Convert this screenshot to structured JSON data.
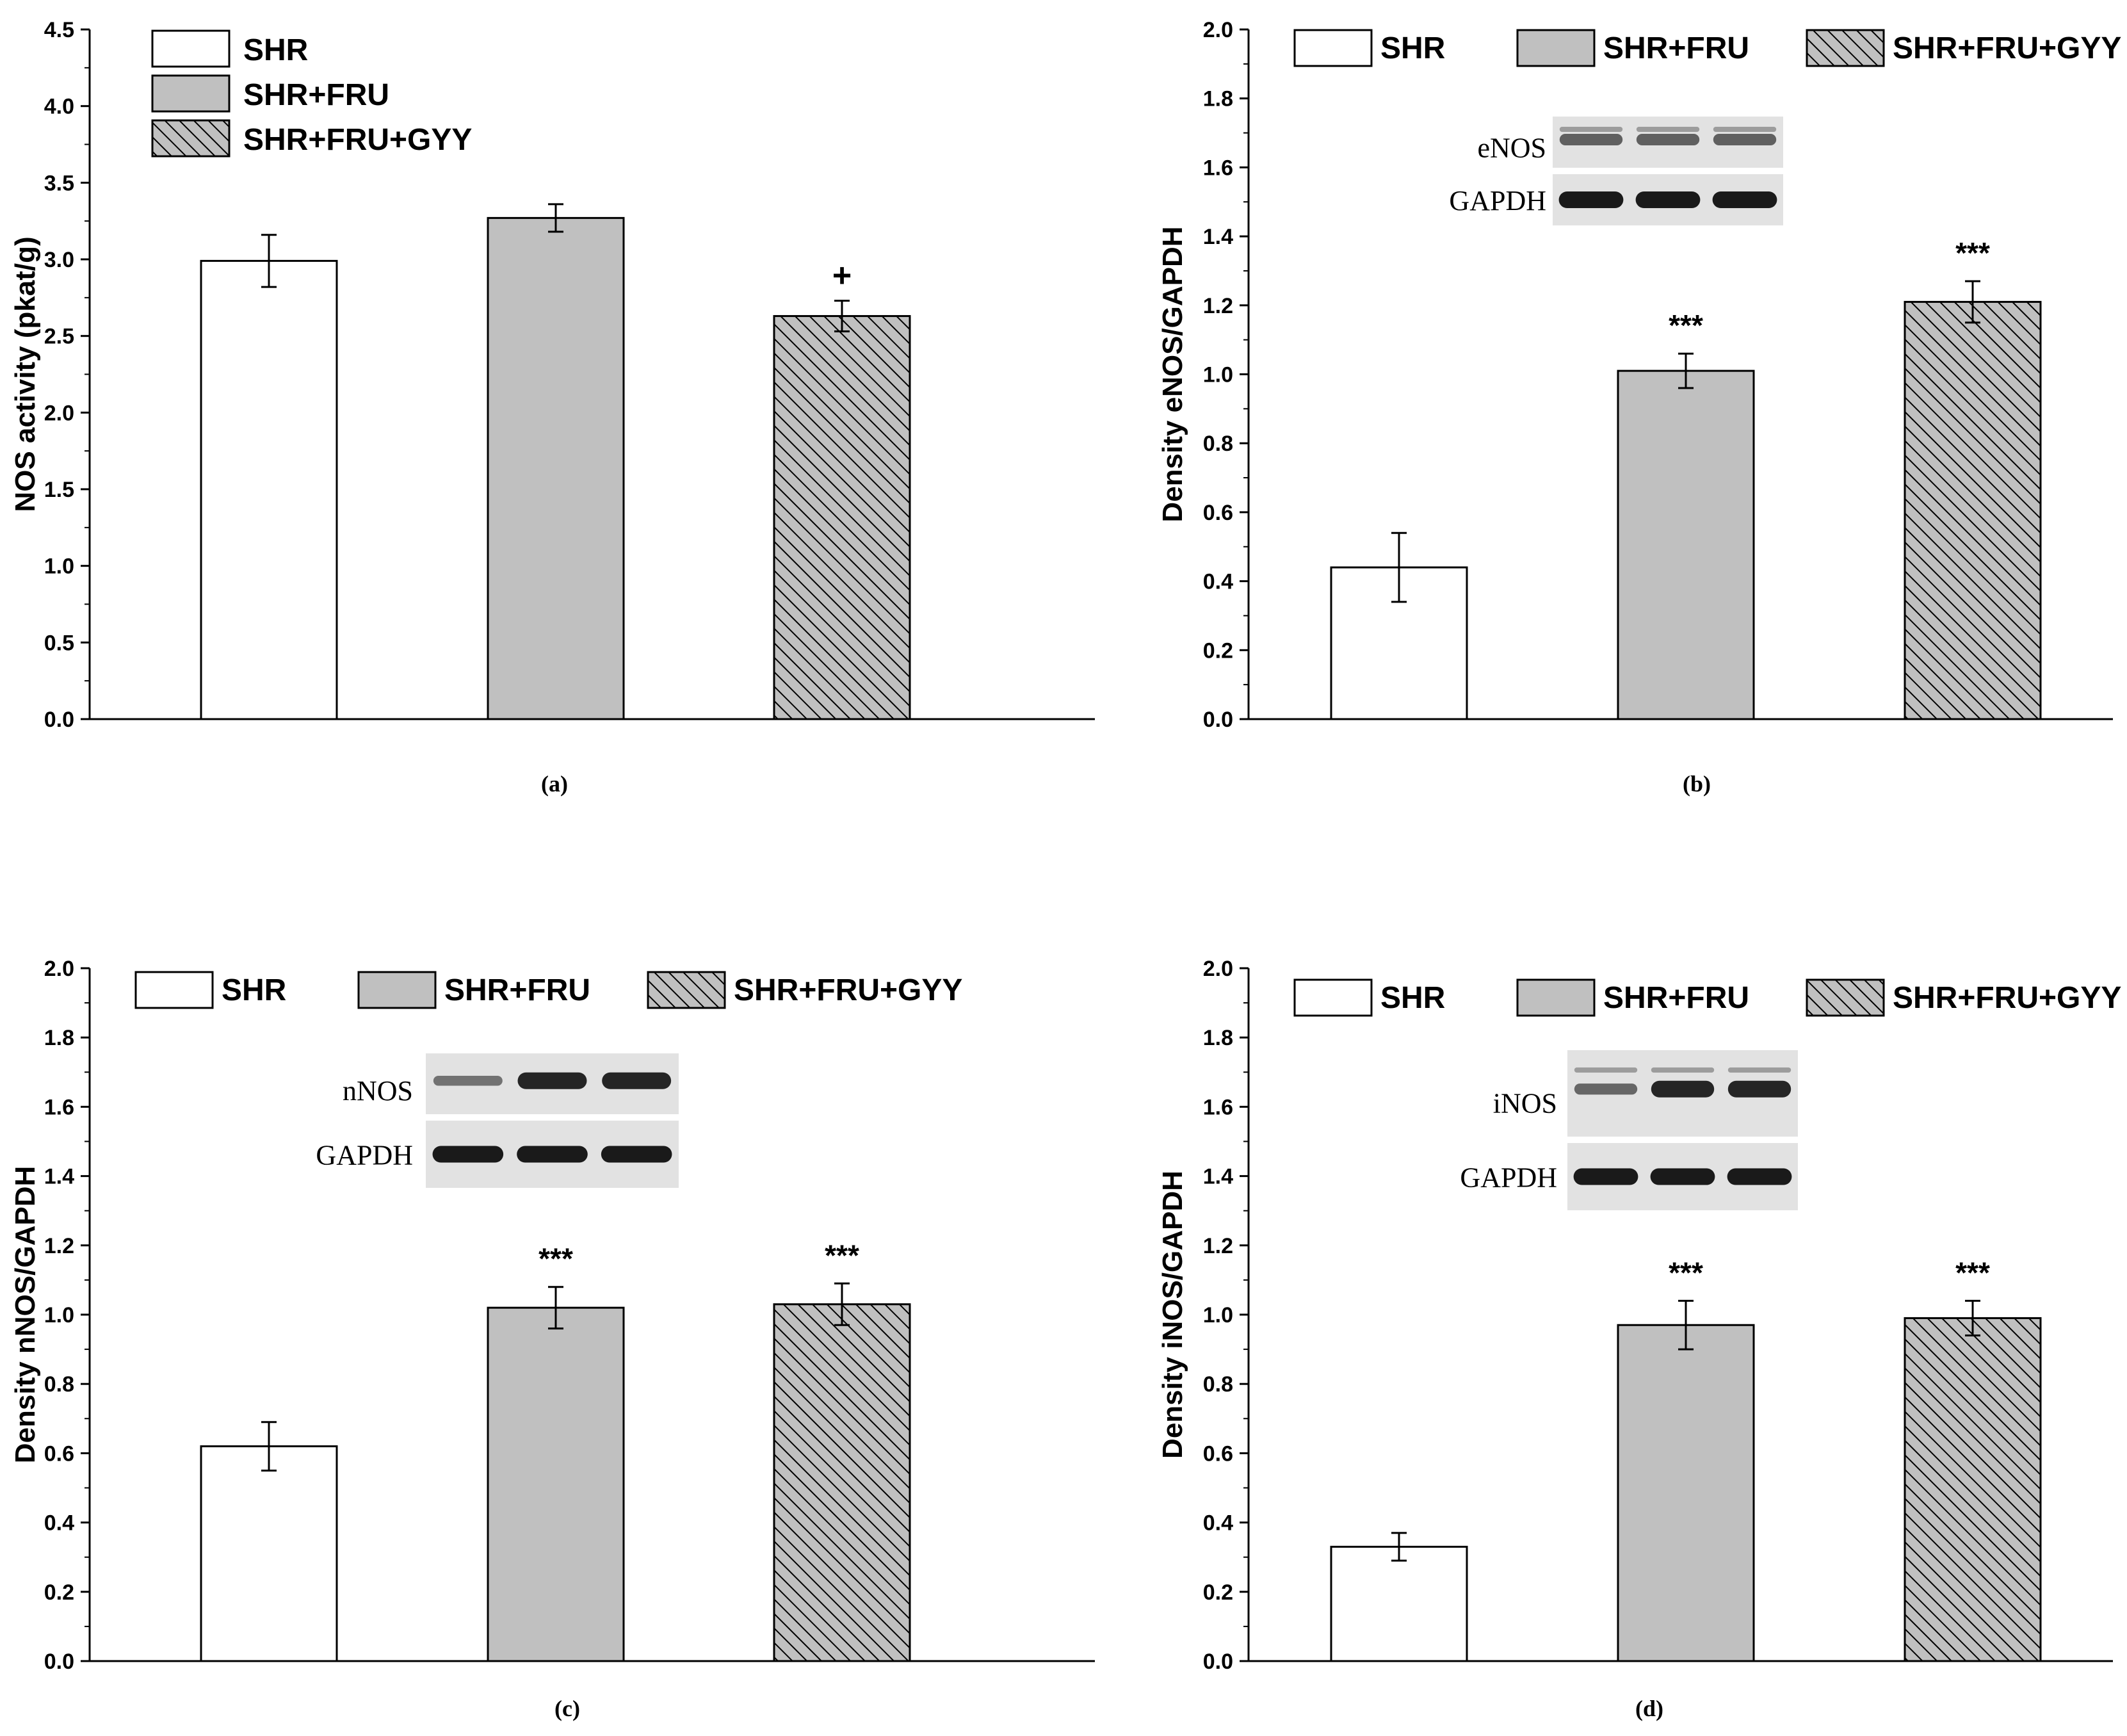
{
  "colors": {
    "shr_fill": "#ffffff",
    "fru_fill": "#c0c0c0",
    "gyy_fill": "#c0c0c0",
    "stroke": "#000000",
    "band_dark": "#1a1a1a",
    "blot_bg": "#e2e2e2"
  },
  "legend_labels": [
    "SHR",
    "SHR+FRU",
    "SHR+FRU+GYY"
  ],
  "chart_data": [
    {
      "panel": "(a)",
      "type": "bar",
      "categories": [
        "SHR",
        "SHR+FRU",
        "SHR+FRU+GYY"
      ],
      "values": [
        2.99,
        3.27,
        2.63
      ],
      "errors": [
        0.17,
        0.09,
        0.1
      ],
      "annotations": [
        "",
        "",
        "+"
      ],
      "ylabel": "NOS activity (pkat/g)",
      "ylim": [
        0,
        4.5
      ],
      "yticks": [
        "0.0",
        "0.5",
        "1.0",
        "1.5",
        "2.0",
        "2.5",
        "3.0",
        "3.5",
        "4.0",
        "4.5"
      ],
      "legend": "top-left, stacked",
      "inset": null
    },
    {
      "panel": "(b)",
      "type": "bar",
      "categories": [
        "SHR",
        "SHR+FRU",
        "SHR+FRU+GYY"
      ],
      "values": [
        0.44,
        1.01,
        1.21
      ],
      "errors": [
        0.1,
        0.05,
        0.06
      ],
      "annotations": [
        "",
        "***",
        "***"
      ],
      "ylabel": "Density eNOS/GAPDH",
      "ylim": [
        0,
        2.0
      ],
      "yticks": [
        "0.0",
        "0.2",
        "0.4",
        "0.6",
        "0.8",
        "1.0",
        "1.2",
        "1.4",
        "1.6",
        "1.8",
        "2.0"
      ],
      "legend": "top, single row",
      "inset": {
        "protein_label": "eNOS",
        "control_label": "GAPDH",
        "protein_band_strength": [
          0.5,
          0.5,
          0.5
        ]
      }
    },
    {
      "panel": "(c)",
      "type": "bar",
      "categories": [
        "SHR",
        "SHR+FRU",
        "SHR+FRU+GYY"
      ],
      "values": [
        0.62,
        1.02,
        1.03
      ],
      "errors": [
        0.07,
        0.06,
        0.06
      ],
      "annotations": [
        "",
        "***",
        "***"
      ],
      "ylabel": "Density nNOS/GAPDH",
      "ylim": [
        0,
        2.0
      ],
      "yticks": [
        "0.0",
        "0.2",
        "0.4",
        "0.6",
        "0.8",
        "1.0",
        "1.2",
        "1.4",
        "1.6",
        "1.8",
        "2.0"
      ],
      "legend": "top, single row",
      "inset": {
        "protein_label": "nNOS",
        "control_label": "GAPDH",
        "protein_band_strength": [
          0.35,
          1.0,
          1.0
        ]
      }
    },
    {
      "panel": "(d)",
      "type": "bar",
      "categories": [
        "SHR",
        "SHR+FRU",
        "SHR+FRU+GYY"
      ],
      "values": [
        0.33,
        0.97,
        0.99
      ],
      "errors": [
        0.04,
        0.07,
        0.05
      ],
      "annotations": [
        "",
        "***",
        "***"
      ],
      "ylabel": "Density iNOS/GAPDH",
      "ylim": [
        0,
        2.0
      ],
      "yticks": [
        "0.0",
        "0.2",
        "0.4",
        "0.6",
        "0.8",
        "1.0",
        "1.2",
        "1.4",
        "1.6",
        "1.8",
        "2.0"
      ],
      "legend": "top, single row",
      "inset": {
        "protein_label": "iNOS",
        "control_label": "GAPDH",
        "protein_band_strength": [
          0.45,
          1.0,
          1.0
        ]
      }
    }
  ]
}
